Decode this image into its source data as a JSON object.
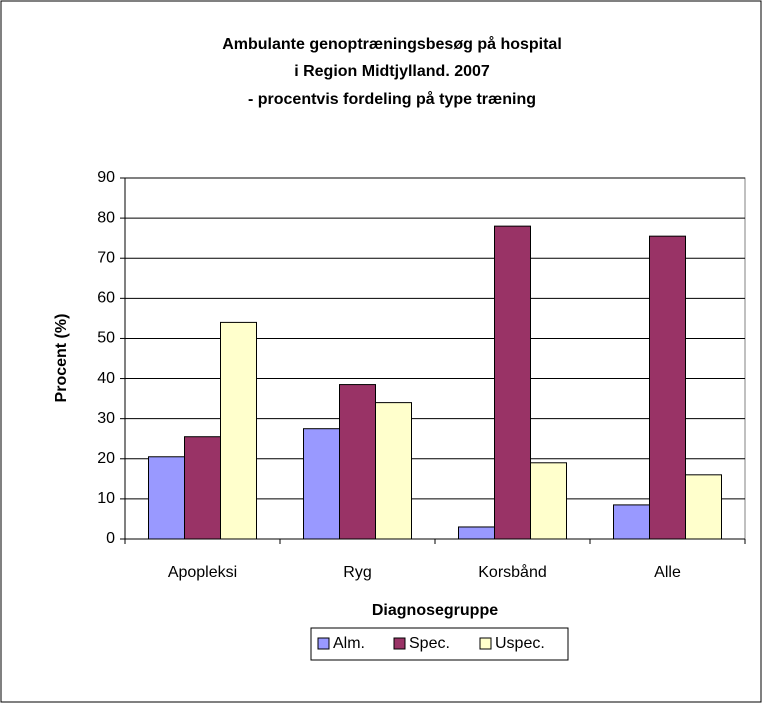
{
  "chart_data": {
    "type": "bar",
    "title": [
      "Ambulante genoptræningsbesøg på hospital",
      "i Region Midtjylland. 2007",
      "- procentvis fordeling på type træning"
    ],
    "x_label": "Diagnosegruppe",
    "y_label": "Procent (%)",
    "categories": [
      "Apopleksi",
      "Ryg",
      "Korsbånd",
      "Alle"
    ],
    "series": [
      {
        "name": "Alm.",
        "color": "#9999ff",
        "values": [
          20.5,
          27.5,
          3,
          8.5
        ]
      },
      {
        "name": "Spec.",
        "color": "#993366",
        "values": [
          25.5,
          38.5,
          78,
          75.5
        ]
      },
      {
        "name": "Uspec.",
        "color": "#ffffcc",
        "values": [
          54,
          34,
          19,
          16
        ]
      }
    ],
    "ylim": [
      0,
      90
    ],
    "yticks": [
      0,
      10,
      20,
      30,
      40,
      50,
      60,
      70,
      80,
      90
    ],
    "grid": true,
    "legend": "bottom"
  }
}
